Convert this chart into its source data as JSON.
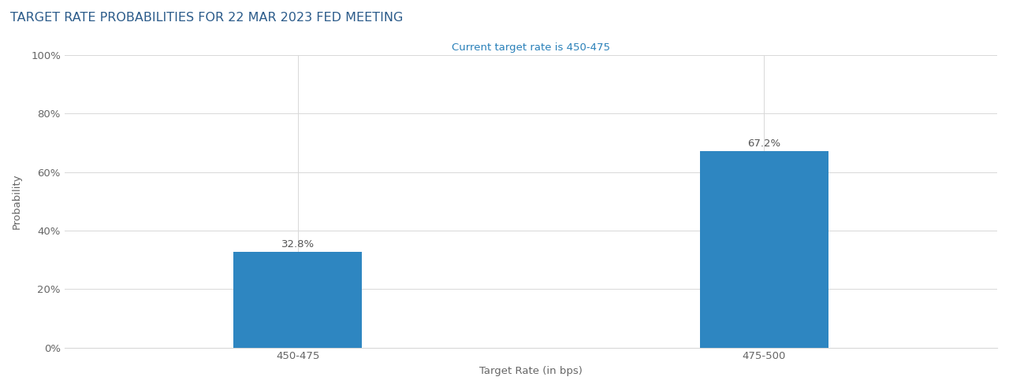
{
  "title": "TARGET RATE PROBABILITIES FOR 22 MAR 2023 FED MEETING",
  "subtitle": "Current target rate is 450-475",
  "categories": [
    "450-475",
    "475-500"
  ],
  "values": [
    32.8,
    67.2
  ],
  "bar_color": "#2e86c1",
  "xlabel": "Target Rate (in bps)",
  "ylabel": "Probability",
  "ylim": [
    0,
    100
  ],
  "yticks": [
    0,
    20,
    40,
    60,
    80,
    100
  ],
  "ytick_labels": [
    "0%",
    "20%",
    "40%",
    "60%",
    "80%",
    "100%"
  ],
  "title_color": "#2b5b8a",
  "subtitle_color": "#2980b9",
  "label_color": "#666666",
  "bar_label_color": "#555555",
  "background_color": "#ffffff",
  "grid_color": "#d8d8d8",
  "title_fontsize": 11.5,
  "subtitle_fontsize": 9.5,
  "axis_label_fontsize": 9.5,
  "tick_fontsize": 9.5,
  "bar_label_fontsize": 9.5,
  "bar_positions": [
    1,
    3
  ],
  "xlim": [
    0,
    4
  ],
  "bar_width": 0.55
}
